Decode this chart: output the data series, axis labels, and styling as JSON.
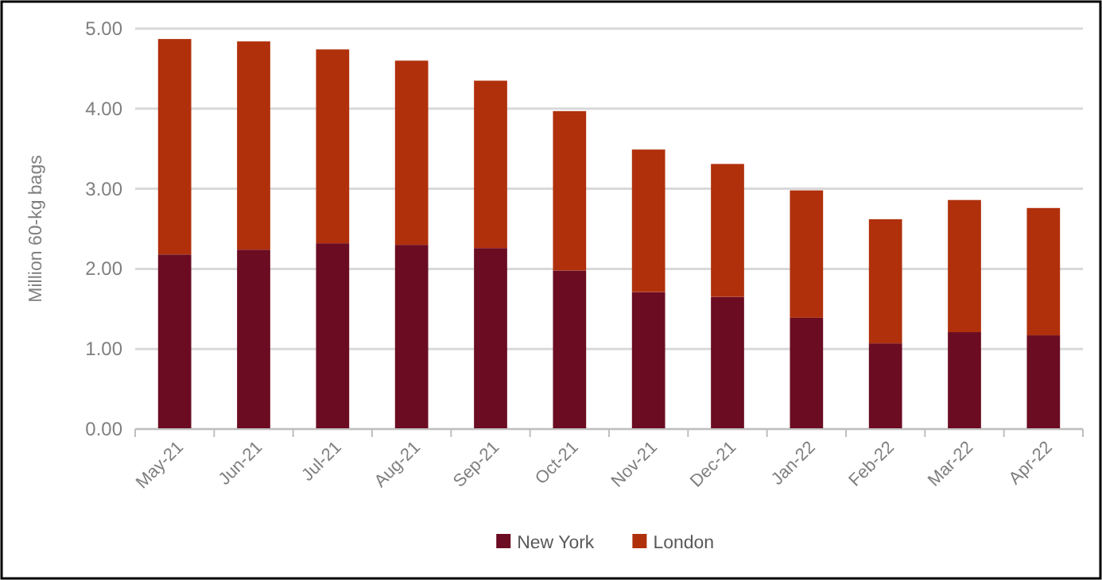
{
  "chart_data": {
    "type": "bar",
    "stacked": true,
    "ylabel": "Million 60-kg bags",
    "categories": [
      "May-21",
      "Jun-21",
      "Jul-21",
      "Aug-21",
      "Sep-21",
      "Oct-21",
      "Nov-21",
      "Dec-21",
      "Jan-22",
      "Feb-22",
      "Mar-22",
      "Apr-22"
    ],
    "series": [
      {
        "name": "New York",
        "color": "#6b0c22",
        "values": [
          2.18,
          2.24,
          2.32,
          2.3,
          2.26,
          1.98,
          1.71,
          1.65,
          1.39,
          1.07,
          1.21,
          1.17
        ]
      },
      {
        "name": "London",
        "color": "#b0300c",
        "values": [
          2.69,
          2.6,
          2.42,
          2.3,
          2.09,
          1.99,
          1.78,
          1.66,
          1.59,
          1.55,
          1.65,
          1.59
        ]
      }
    ],
    "ylim": [
      0,
      5
    ],
    "yticks": [
      {
        "value": 0,
        "label": "0.00"
      },
      {
        "value": 1,
        "label": "1.00"
      },
      {
        "value": 2,
        "label": "2.00"
      },
      {
        "value": 3,
        "label": "3.00"
      },
      {
        "value": 4,
        "label": "4.00"
      },
      {
        "value": 5,
        "label": "5.00"
      }
    ],
    "grid": "y",
    "legend": "bottom"
  }
}
